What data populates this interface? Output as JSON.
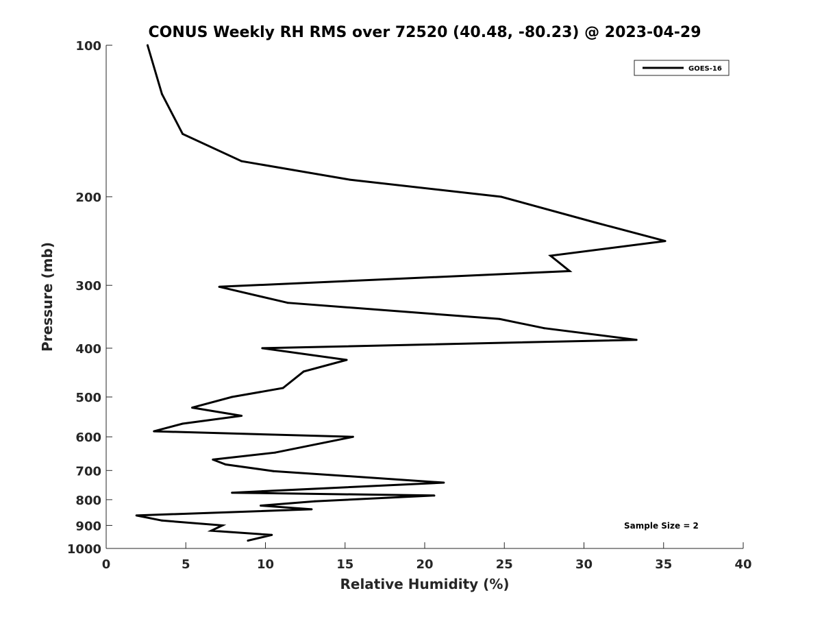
{
  "chart_data": {
    "type": "line",
    "title": "CONUS Weekly RH RMS over 72520 (40.48, -80.23) @ 2023-04-29",
    "xlabel": "Relative Humidity (%)",
    "ylabel": "Pressure (mb)",
    "xlim": [
      0,
      40
    ],
    "ylim": [
      100,
      1000
    ],
    "y_scale": "log",
    "y_reversed": true,
    "x_ticks": [
      0,
      5,
      10,
      15,
      20,
      25,
      30,
      35,
      40
    ],
    "x_tick_labels": [
      "0",
      "5",
      "10",
      "15",
      "20",
      "25",
      "30",
      "35",
      "40"
    ],
    "y_ticks": [
      100,
      200,
      300,
      400,
      500,
      600,
      700,
      800,
      900,
      1000
    ],
    "y_tick_labels": [
      "100",
      "200",
      "300",
      "400",
      "500",
      "600",
      "700",
      "800",
      "900",
      "1000"
    ],
    "grid": false,
    "legend_position": "top-right",
    "annotation": "Sample Size = 2",
    "series": [
      {
        "name": "GOES-16",
        "color": "#000000",
        "x": [
          2.6,
          3.5,
          4.8,
          8.5,
          15.3,
          24.8,
          30.7,
          35.1,
          27.9,
          29.1,
          7.1,
          11.4,
          24.7,
          27.5,
          33.3,
          9.8,
          15.1,
          12.4,
          11.1,
          7.9,
          5.4,
          8.5,
          4.8,
          3.0,
          15.5,
          10.6,
          6.7,
          7.5,
          10.5,
          21.2,
          7.9,
          20.6,
          13.1,
          9.7,
          12.9,
          1.9,
          3.5,
          7.3,
          6.6,
          10.4,
          8.9
        ],
        "y": [
          100,
          125,
          150,
          170,
          185,
          200,
          225,
          245,
          262,
          281,
          302,
          325,
          350,
          365,
          385,
          400,
          422,
          445,
          480,
          500,
          525,
          545,
          565,
          585,
          600,
          645,
          666,
          681,
          702,
          740,
          775,
          785,
          806,
          822,
          836,
          860,
          880,
          900,
          922,
          940,
          965
        ]
      }
    ]
  }
}
